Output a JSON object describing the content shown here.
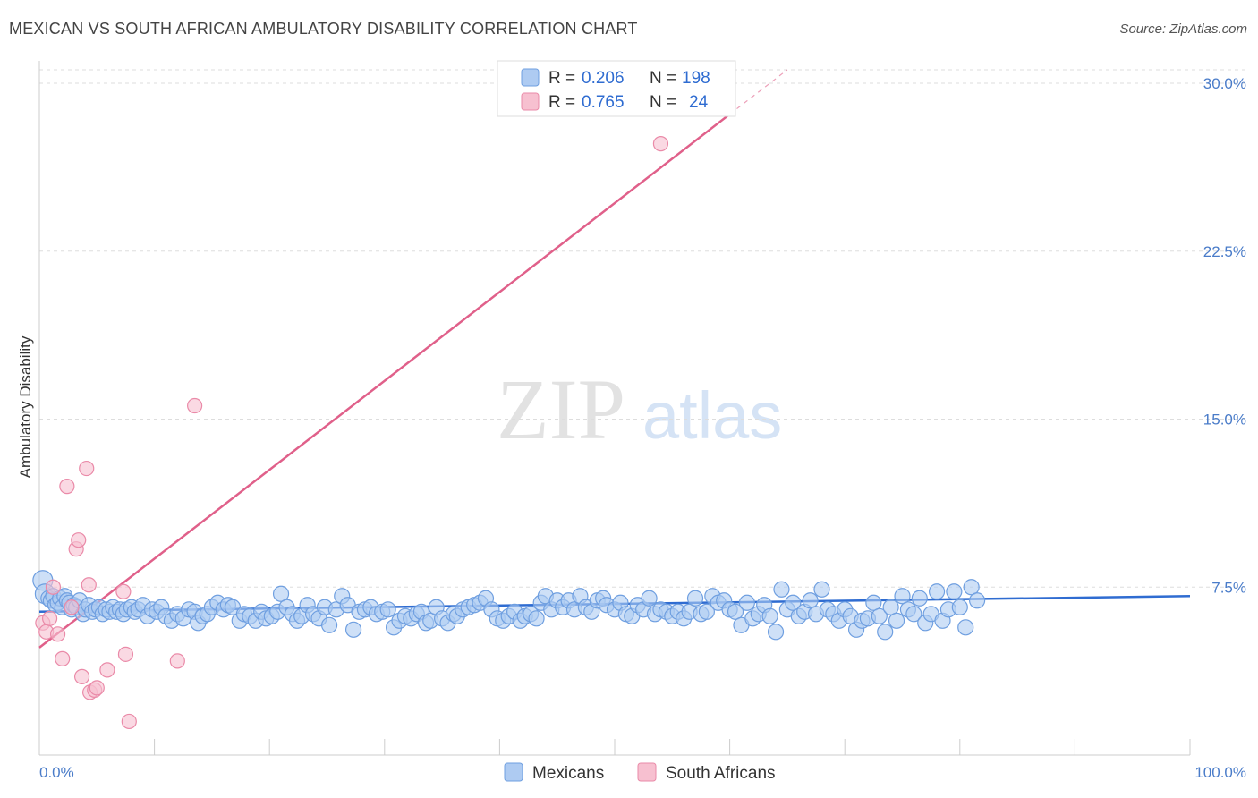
{
  "title": "MEXICAN VS SOUTH AFRICAN AMBULATORY DISABILITY CORRELATION CHART",
  "source": "Source: ZipAtlas.com",
  "watermark": {
    "zip": "ZIP",
    "atlas": "atlas"
  },
  "colors": {
    "blue_fill": "#aecbf2",
    "blue_stroke": "#6f9fe0",
    "blue_line": "#2f6cd1",
    "pink_fill": "#f7c0d0",
    "pink_stroke": "#ea8aa8",
    "pink_line": "#e0608a",
    "grid": "#dddddd",
    "tick_text": "#4a7cc9"
  },
  "legend": {
    "rows": [
      {
        "r_label": "R =",
        "r_value": "0.206",
        "n_label": "N =",
        "n_value": "198",
        "series": "Mexicans"
      },
      {
        "r_label": "R =",
        "r_value": "0.765",
        "n_label": "N =",
        "n_value": "24",
        "series": "South Africans"
      }
    ]
  },
  "chart_data": {
    "type": "scatter",
    "title": "MEXICAN VS SOUTH AFRICAN AMBULATORY DISABILITY CORRELATION CHART",
    "xlabel": "",
    "ylabel": "Ambulatory Disability",
    "xlim": [
      0,
      100
    ],
    "ylim": [
      0,
      30.6
    ],
    "x_tick_labels": [
      "0.0%",
      "100.0%"
    ],
    "y_ticks": [
      7.5,
      15.0,
      22.5,
      30.0
    ],
    "y_tick_labels": [
      "7.5%",
      "15.0%",
      "22.5%",
      "30.0%"
    ],
    "grid": true,
    "legend_position": "bottom-center",
    "series": [
      {
        "name": "Mexicans",
        "trend": {
          "x": [
            0,
            100
          ],
          "y": [
            6.4,
            7.1
          ]
        },
        "points": [
          [
            0.3,
            7.8
          ],
          [
            0.5,
            7.2
          ],
          [
            0.8,
            7.0
          ],
          [
            1.0,
            6.9
          ],
          [
            1.2,
            7.1
          ],
          [
            1.4,
            6.7
          ],
          [
            1.6,
            6.8
          ],
          [
            1.8,
            7.0
          ],
          [
            2.0,
            6.6
          ],
          [
            2.2,
            7.1
          ],
          [
            2.4,
            6.9
          ],
          [
            2.6,
            6.8
          ],
          [
            2.8,
            6.5
          ],
          [
            3.0,
            6.7
          ],
          [
            3.2,
            6.6
          ],
          [
            3.5,
            6.9
          ],
          [
            3.8,
            6.3
          ],
          [
            4.0,
            6.5
          ],
          [
            4.3,
            6.7
          ],
          [
            4.6,
            6.4
          ],
          [
            4.9,
            6.5
          ],
          [
            5.2,
            6.6
          ],
          [
            5.5,
            6.3
          ],
          [
            5.8,
            6.5
          ],
          [
            6.1,
            6.4
          ],
          [
            6.4,
            6.6
          ],
          [
            6.7,
            6.4
          ],
          [
            7.0,
            6.5
          ],
          [
            7.3,
            6.3
          ],
          [
            7.6,
            6.5
          ],
          [
            8.0,
            6.6
          ],
          [
            8.3,
            6.4
          ],
          [
            8.6,
            6.5
          ],
          [
            9.0,
            6.7
          ],
          [
            9.4,
            6.2
          ],
          [
            9.8,
            6.5
          ],
          [
            10.2,
            6.4
          ],
          [
            10.6,
            6.6
          ],
          [
            11.0,
            6.2
          ],
          [
            11.5,
            6.0
          ],
          [
            12.0,
            6.3
          ],
          [
            12.5,
            6.1
          ],
          [
            13.0,
            6.5
          ],
          [
            13.5,
            6.4
          ],
          [
            13.8,
            5.9
          ],
          [
            14.2,
            6.2
          ],
          [
            14.6,
            6.3
          ],
          [
            15.0,
            6.6
          ],
          [
            15.5,
            6.8
          ],
          [
            16.0,
            6.5
          ],
          [
            16.4,
            6.7
          ],
          [
            16.8,
            6.6
          ],
          [
            17.4,
            6.0
          ],
          [
            17.8,
            6.3
          ],
          [
            18.3,
            6.2
          ],
          [
            18.8,
            6.0
          ],
          [
            19.3,
            6.4
          ],
          [
            19.7,
            6.1
          ],
          [
            20.2,
            6.2
          ],
          [
            20.7,
            6.4
          ],
          [
            21.0,
            7.2
          ],
          [
            21.5,
            6.6
          ],
          [
            22.0,
            6.3
          ],
          [
            22.4,
            6.0
          ],
          [
            22.8,
            6.2
          ],
          [
            23.3,
            6.7
          ],
          [
            23.8,
            6.3
          ],
          [
            24.3,
            6.1
          ],
          [
            24.8,
            6.6
          ],
          [
            25.2,
            5.8
          ],
          [
            25.8,
            6.5
          ],
          [
            26.3,
            7.1
          ],
          [
            26.8,
            6.7
          ],
          [
            27.3,
            5.6
          ],
          [
            27.8,
            6.4
          ],
          [
            28.3,
            6.5
          ],
          [
            28.8,
            6.6
          ],
          [
            29.3,
            6.3
          ],
          [
            29.8,
            6.4
          ],
          [
            30.3,
            6.5
          ],
          [
            30.8,
            5.7
          ],
          [
            31.3,
            6.0
          ],
          [
            31.8,
            6.2
          ],
          [
            32.3,
            6.1
          ],
          [
            32.8,
            6.3
          ],
          [
            33.2,
            6.4
          ],
          [
            33.6,
            5.9
          ],
          [
            34.0,
            6.0
          ],
          [
            34.5,
            6.6
          ],
          [
            35.0,
            6.1
          ],
          [
            35.5,
            5.9
          ],
          [
            36.0,
            6.3
          ],
          [
            36.3,
            6.2
          ],
          [
            36.8,
            6.5
          ],
          [
            37.3,
            6.6
          ],
          [
            37.8,
            6.7
          ],
          [
            38.3,
            6.8
          ],
          [
            38.8,
            7.0
          ],
          [
            39.3,
            6.5
          ],
          [
            39.8,
            6.1
          ],
          [
            40.3,
            6.0
          ],
          [
            40.8,
            6.2
          ],
          [
            41.3,
            6.4
          ],
          [
            41.8,
            6.0
          ],
          [
            42.2,
            6.2
          ],
          [
            42.7,
            6.3
          ],
          [
            43.2,
            6.1
          ],
          [
            43.6,
            6.8
          ],
          [
            44.0,
            7.1
          ],
          [
            44.5,
            6.5
          ],
          [
            45.0,
            6.9
          ],
          [
            45.5,
            6.6
          ],
          [
            46.0,
            6.9
          ],
          [
            46.5,
            6.5
          ],
          [
            47.0,
            7.1
          ],
          [
            47.5,
            6.6
          ],
          [
            48.0,
            6.4
          ],
          [
            48.5,
            6.9
          ],
          [
            49.0,
            7.0
          ],
          [
            49.3,
            6.7
          ],
          [
            50.0,
            6.5
          ],
          [
            50.5,
            6.8
          ],
          [
            51.0,
            6.3
          ],
          [
            51.5,
            6.2
          ],
          [
            52.0,
            6.7
          ],
          [
            52.5,
            6.5
          ],
          [
            53.0,
            7.0
          ],
          [
            53.5,
            6.3
          ],
          [
            54.0,
            6.5
          ],
          [
            54.5,
            6.4
          ],
          [
            55.0,
            6.2
          ],
          [
            55.5,
            6.4
          ],
          [
            56.0,
            6.1
          ],
          [
            56.5,
            6.4
          ],
          [
            57.0,
            7.0
          ],
          [
            57.5,
            6.3
          ],
          [
            58.0,
            6.4
          ],
          [
            58.5,
            7.1
          ],
          [
            59.0,
            6.8
          ],
          [
            59.5,
            6.9
          ],
          [
            60.0,
            6.5
          ],
          [
            60.5,
            6.4
          ],
          [
            61.0,
            5.8
          ],
          [
            61.5,
            6.8
          ],
          [
            62.0,
            6.1
          ],
          [
            62.5,
            6.3
          ],
          [
            63.0,
            6.7
          ],
          [
            63.5,
            6.2
          ],
          [
            64.0,
            5.5
          ],
          [
            64.5,
            7.4
          ],
          [
            65.0,
            6.5
          ],
          [
            65.5,
            6.8
          ],
          [
            66.0,
            6.2
          ],
          [
            66.5,
            6.4
          ],
          [
            67.0,
            6.9
          ],
          [
            67.5,
            6.3
          ],
          [
            68.0,
            7.4
          ],
          [
            68.5,
            6.5
          ],
          [
            69.0,
            6.3
          ],
          [
            69.5,
            6.0
          ],
          [
            70.0,
            6.5
          ],
          [
            70.5,
            6.2
          ],
          [
            71.0,
            5.6
          ],
          [
            71.5,
            6.0
          ],
          [
            72.0,
            6.1
          ],
          [
            72.5,
            6.8
          ],
          [
            73.0,
            6.2
          ],
          [
            73.5,
            5.5
          ],
          [
            74.0,
            6.6
          ],
          [
            74.5,
            6.0
          ],
          [
            75.0,
            7.1
          ],
          [
            75.5,
            6.5
          ],
          [
            76.0,
            6.3
          ],
          [
            76.5,
            7.0
          ],
          [
            77.0,
            5.9
          ],
          [
            77.5,
            6.3
          ],
          [
            78.0,
            7.3
          ],
          [
            78.5,
            6.0
          ],
          [
            79.0,
            6.5
          ],
          [
            79.5,
            7.3
          ],
          [
            80.0,
            6.6
          ],
          [
            80.5,
            5.7
          ],
          [
            81.0,
            7.5
          ],
          [
            81.5,
            6.9
          ]
        ]
      },
      {
        "name": "South Africans",
        "trend": {
          "x": [
            0,
            65
          ],
          "y": [
            4.8,
            30.6
          ]
        },
        "points": [
          [
            0.3,
            5.9
          ],
          [
            0.6,
            5.5
          ],
          [
            0.9,
            6.1
          ],
          [
            1.2,
            7.5
          ],
          [
            1.6,
            5.4
          ],
          [
            2.0,
            4.3
          ],
          [
            2.4,
            12.0
          ],
          [
            2.8,
            6.6
          ],
          [
            3.2,
            9.2
          ],
          [
            3.4,
            9.6
          ],
          [
            3.7,
            3.5
          ],
          [
            4.1,
            12.8
          ],
          [
            4.3,
            7.6
          ],
          [
            4.4,
            2.8
          ],
          [
            4.8,
            2.9
          ],
          [
            5.0,
            3.0
          ],
          [
            5.9,
            3.8
          ],
          [
            7.3,
            7.3
          ],
          [
            7.5,
            4.5
          ],
          [
            7.8,
            1.5
          ],
          [
            12.0,
            4.2
          ],
          [
            13.5,
            15.6
          ],
          [
            54.0,
            27.3
          ]
        ]
      }
    ]
  }
}
